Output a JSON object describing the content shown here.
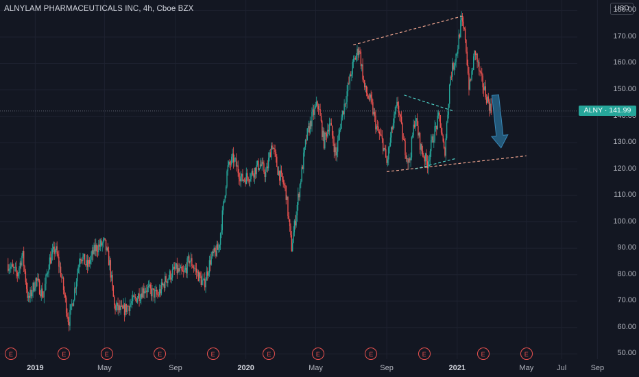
{
  "chart": {
    "title": "ALNYLAM PHARMACEUTICALS INC, 4h, Cboe BZX",
    "currency": "USD",
    "ticker": "ALNY",
    "last_price": "141.99",
    "last_label": "ALNY · 141.99",
    "earnings_label": "E",
    "colors": {
      "up": "#26a69a",
      "down": "#ef5350",
      "background": "#131722",
      "grid": "#1e2230",
      "pattern_line": "#f0a58f",
      "arrow": "#2a6f97"
    }
  },
  "chart_data": {
    "type": "candlestick",
    "title": "ALNYLAM PHARMACEUTICALS INC, 4h, Cboe BZX",
    "y_axis": {
      "ticks": [
        50,
        60,
        70,
        80,
        90,
        100,
        110,
        120,
        130,
        140,
        150,
        160,
        170,
        180
      ],
      "tick_labels": [
        "50.00",
        "60.00",
        "70.00",
        "80.00",
        "90.00",
        "100.00",
        "110.00",
        "120.00",
        "130.00",
        "140.00",
        "150.00",
        "160.00",
        "170.00",
        "180.00"
      ],
      "range": [
        48,
        184
      ]
    },
    "x_axis": {
      "tick_labels": [
        "2019",
        "May",
        "Sep",
        "2020",
        "May",
        "Sep",
        "2021",
        "May",
        "Jul",
        "Sep"
      ],
      "bold": [
        true,
        false,
        false,
        true,
        false,
        false,
        true,
        false,
        false,
        false
      ]
    },
    "price_path": [
      [
        "2018-11-15",
        84
      ],
      [
        "2018-12-01",
        80
      ],
      [
        "2018-12-10",
        88
      ],
      [
        "2018-12-20",
        70
      ],
      [
        "2019-01-02",
        78
      ],
      [
        "2019-01-15",
        72
      ],
      [
        "2019-01-25",
        85
      ],
      [
        "2019-02-05",
        90
      ],
      [
        "2019-02-15",
        80
      ],
      [
        "2019-02-28",
        62
      ],
      [
        "2019-03-10",
        74
      ],
      [
        "2019-03-20",
        88
      ],
      [
        "2019-04-01",
        83
      ],
      [
        "2019-04-15",
        90
      ],
      [
        "2019-05-01",
        92
      ],
      [
        "2019-05-10",
        84
      ],
      [
        "2019-05-18",
        68
      ],
      [
        "2019-06-01",
        66
      ],
      [
        "2019-06-20",
        70
      ],
      [
        "2019-07-10",
        75
      ],
      [
        "2019-08-01",
        72
      ],
      [
        "2019-08-15",
        78
      ],
      [
        "2019-09-01",
        82
      ],
      [
        "2019-09-15",
        80
      ],
      [
        "2019-09-25",
        86
      ],
      [
        "2019-10-10",
        80
      ],
      [
        "2019-10-20",
        76
      ],
      [
        "2019-11-01",
        86
      ],
      [
        "2019-11-15",
        90
      ],
      [
        "2019-11-30",
        120
      ],
      [
        "2019-12-10",
        124
      ],
      [
        "2019-12-25",
        116
      ],
      [
        "2020-01-10",
        118
      ],
      [
        "2020-01-25",
        122
      ],
      [
        "2020-02-05",
        118
      ],
      [
        "2020-02-15",
        130
      ],
      [
        "2020-02-25",
        120
      ],
      [
        "2020-03-10",
        112
      ],
      [
        "2020-03-20",
        90
      ],
      [
        "2020-04-01",
        110
      ],
      [
        "2020-04-15",
        132
      ],
      [
        "2020-04-25",
        140
      ],
      [
        "2020-05-05",
        145
      ],
      [
        "2020-05-15",
        130
      ],
      [
        "2020-05-25",
        138
      ],
      [
        "2020-06-05",
        125
      ],
      [
        "2020-06-15",
        140
      ],
      [
        "2020-06-25",
        150
      ],
      [
        "2020-07-05",
        160
      ],
      [
        "2020-07-15",
        166
      ],
      [
        "2020-07-25",
        150
      ],
      [
        "2020-08-05",
        145
      ],
      [
        "2020-08-15",
        135
      ],
      [
        "2020-08-25",
        130
      ],
      [
        "2020-09-01",
        122
      ],
      [
        "2020-09-10",
        135
      ],
      [
        "2020-09-20",
        145
      ],
      [
        "2020-09-30",
        130
      ],
      [
        "2020-10-10",
        122
      ],
      [
        "2020-10-20",
        140
      ],
      [
        "2020-10-30",
        128
      ],
      [
        "2020-11-10",
        122
      ],
      [
        "2020-11-20",
        132
      ],
      [
        "2020-12-01",
        140
      ],
      [
        "2020-12-10",
        125
      ],
      [
        "2020-12-20",
        155
      ],
      [
        "2021-01-01",
        165
      ],
      [
        "2021-01-08",
        176
      ],
      [
        "2021-01-15",
        170
      ],
      [
        "2021-01-22",
        150
      ],
      [
        "2021-02-01",
        165
      ],
      [
        "2021-02-10",
        155
      ],
      [
        "2021-02-20",
        148
      ],
      [
        "2021-03-01",
        141.99
      ]
    ],
    "annotations": {
      "upper_trendline": [
        [
          "2020-07-05",
          167
        ],
        [
          "2021-01-12",
          178
        ]
      ],
      "lower_trendline": [
        [
          "2020-09-01",
          119
        ],
        [
          "2021-05-01",
          125
        ]
      ],
      "inner_line_top": [
        [
          "2020-10-01",
          148
        ],
        [
          "2020-12-25",
          142
        ]
      ],
      "inner_line_bottom": [
        [
          "2020-10-20",
          120
        ],
        [
          "2020-12-30",
          124
        ]
      ],
      "forecast_arrow": {
        "from": [
          "2021-03-08",
          148
        ],
        "to": [
          "2021-03-18",
          128
        ]
      },
      "earnings_markers": [
        "2018-11-20",
        "2019-02-20",
        "2019-05-05",
        "2019-08-05",
        "2019-11-05",
        "2020-02-10",
        "2020-05-05",
        "2020-08-05",
        "2020-11-05",
        "2021-02-15",
        "2021-05-01"
      ]
    },
    "last_price": 141.99
  }
}
